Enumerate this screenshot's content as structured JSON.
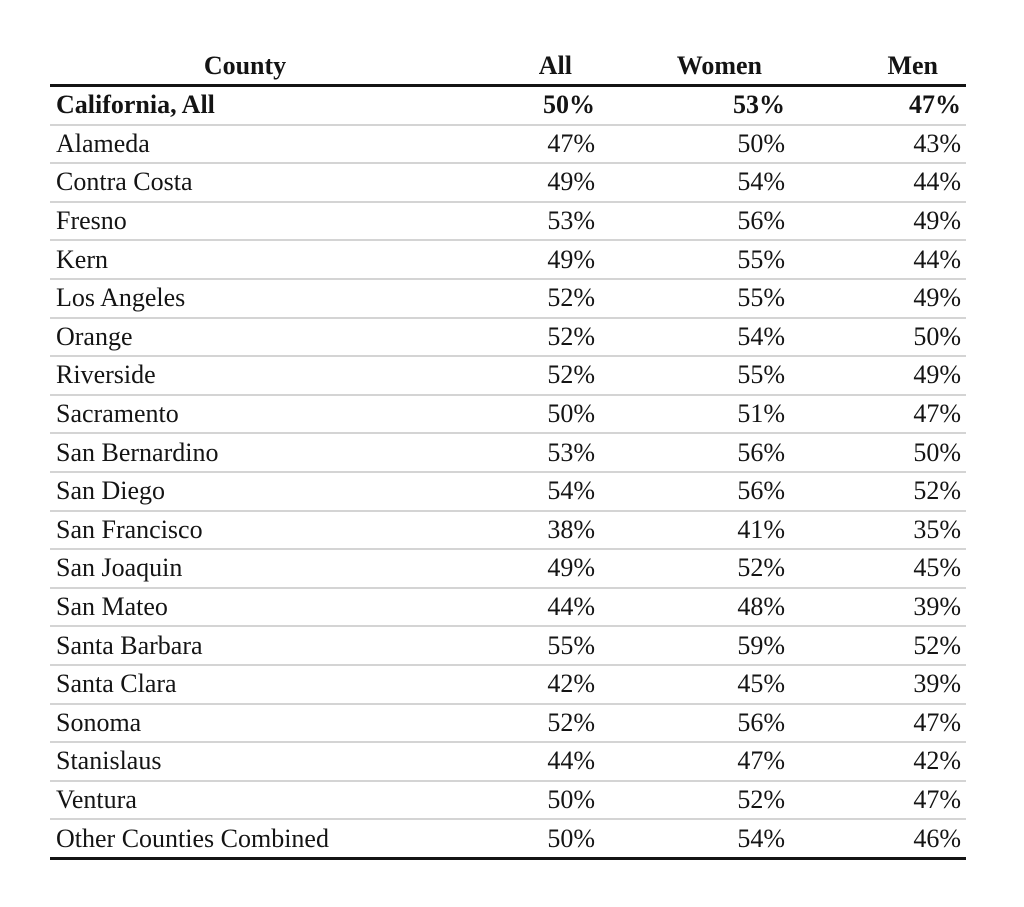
{
  "page": {
    "background": "#ffffff",
    "text_color": "#141414",
    "separator_color": "#d4d4d4",
    "rule_color": "#141414"
  },
  "table": {
    "headers": {
      "county": "County",
      "all": "All",
      "women": "Women",
      "men": "Men"
    },
    "rows": [
      {
        "county": "California, All",
        "all": "50%",
        "women": "53%",
        "men": "47%",
        "bold": true
      },
      {
        "county": "Alameda",
        "all": "47%",
        "women": "50%",
        "men": "43%",
        "bold": false
      },
      {
        "county": "Contra Costa",
        "all": "49%",
        "women": "54%",
        "men": "44%",
        "bold": false
      },
      {
        "county": "Fresno",
        "all": "53%",
        "women": "56%",
        "men": "49%",
        "bold": false
      },
      {
        "county": "Kern",
        "all": "49%",
        "women": "55%",
        "men": "44%",
        "bold": false
      },
      {
        "county": "Los Angeles",
        "all": "52%",
        "women": "55%",
        "men": "49%",
        "bold": false
      },
      {
        "county": "Orange",
        "all": "52%",
        "women": "54%",
        "men": "50%",
        "bold": false
      },
      {
        "county": "Riverside",
        "all": "52%",
        "women": "55%",
        "men": "49%",
        "bold": false
      },
      {
        "county": "Sacramento",
        "all": "50%",
        "women": "51%",
        "men": "47%",
        "bold": false
      },
      {
        "county": "San Bernardino",
        "all": "53%",
        "women": "56%",
        "men": "50%",
        "bold": false
      },
      {
        "county": "San Diego",
        "all": "54%",
        "women": "56%",
        "men": "52%",
        "bold": false
      },
      {
        "county": "San Francisco",
        "all": "38%",
        "women": "41%",
        "men": "35%",
        "bold": false
      },
      {
        "county": "San Joaquin",
        "all": "49%",
        "women": "52%",
        "men": "45%",
        "bold": false
      },
      {
        "county": "San Mateo",
        "all": "44%",
        "women": "48%",
        "men": "39%",
        "bold": false
      },
      {
        "county": "Santa Barbara",
        "all": "55%",
        "women": "59%",
        "men": "52%",
        "bold": false
      },
      {
        "county": "Santa Clara",
        "all": "42%",
        "women": "45%",
        "men": "39%",
        "bold": false
      },
      {
        "county": "Sonoma",
        "all": "52%",
        "women": "56%",
        "men": "47%",
        "bold": false
      },
      {
        "county": "Stanislaus",
        "all": "44%",
        "women": "47%",
        "men": "42%",
        "bold": false
      },
      {
        "county": "Ventura",
        "all": "50%",
        "women": "52%",
        "men": "47%",
        "bold": false
      },
      {
        "county": "Other Counties Combined",
        "all": "50%",
        "women": "54%",
        "men": "46%",
        "bold": false
      }
    ]
  },
  "chart_data": {
    "type": "table",
    "title": "",
    "columns": [
      "County",
      "All",
      "Women",
      "Men"
    ],
    "unit": "percent",
    "rows": [
      [
        "California, All",
        50,
        53,
        47
      ],
      [
        "Alameda",
        47,
        50,
        43
      ],
      [
        "Contra Costa",
        49,
        54,
        44
      ],
      [
        "Fresno",
        53,
        56,
        49
      ],
      [
        "Kern",
        49,
        55,
        44
      ],
      [
        "Los Angeles",
        52,
        55,
        49
      ],
      [
        "Orange",
        52,
        54,
        50
      ],
      [
        "Riverside",
        52,
        55,
        49
      ],
      [
        "Sacramento",
        50,
        51,
        47
      ],
      [
        "San Bernardino",
        53,
        56,
        50
      ],
      [
        "San Diego",
        54,
        56,
        52
      ],
      [
        "San Francisco",
        38,
        41,
        35
      ],
      [
        "San Joaquin",
        49,
        52,
        45
      ],
      [
        "San Mateo",
        44,
        48,
        39
      ],
      [
        "Santa Barbara",
        55,
        59,
        52
      ],
      [
        "Santa Clara",
        42,
        45,
        39
      ],
      [
        "Sonoma",
        52,
        56,
        47
      ],
      [
        "Stanislaus",
        44,
        47,
        42
      ],
      [
        "Ventura",
        50,
        52,
        47
      ],
      [
        "Other Counties Combined",
        50,
        54,
        46
      ]
    ]
  }
}
